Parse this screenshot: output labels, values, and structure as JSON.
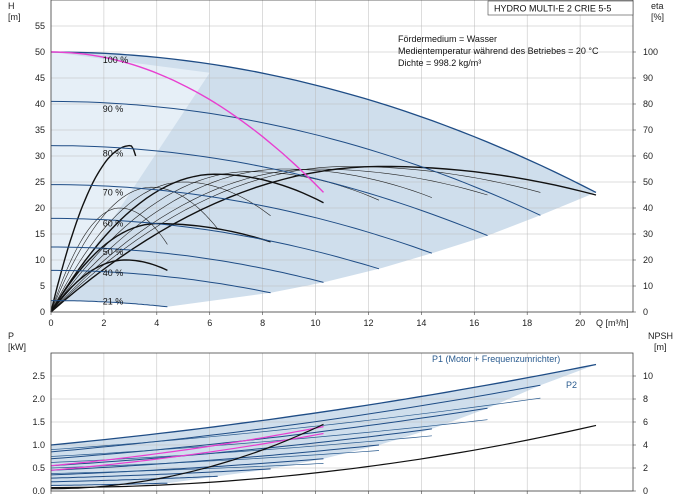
{
  "chart_data": [
    {
      "type": "line",
      "title": "HYDRO MULTI-E 2 CRIE 5-5",
      "ylabel_left": "H",
      "ylabel_left_unit": "[m]",
      "ylabel_right": "eta",
      "ylabel_right_unit": "[%]",
      "xlabel": "Q [m³/h]",
      "xlim": [
        0,
        22
      ],
      "ylim": [
        0,
        60
      ],
      "y2lim": [
        0,
        120
      ],
      "xticks": [
        0,
        2,
        4,
        6,
        8,
        10,
        12,
        14,
        16,
        18,
        20
      ],
      "yticks": [
        0,
        5,
        10,
        15,
        20,
        25,
        30,
        35,
        40,
        45,
        50,
        55
      ],
      "y2ticks": [
        0,
        10,
        20,
        30,
        40,
        50,
        60,
        70,
        80,
        90,
        100
      ],
      "grid": true,
      "annotations": [
        "Fördermedium = Wasser",
        "Medientemperatur während des Betriebes = 20 °C",
        "Dichte = 998.2 kg/m³"
      ],
      "speed_labels": [
        {
          "label": "100 %",
          "q": 1.2,
          "h": 48.5
        },
        {
          "label": "90 %",
          "q": 1.2,
          "h": 39.0
        },
        {
          "label": "80 %",
          "q": 1.2,
          "h": 30.5
        },
        {
          "label": "70 %",
          "q": 1.2,
          "h": 23.0
        },
        {
          "label": "60 %",
          "q": 1.2,
          "h": 17.0
        },
        {
          "label": "50 %",
          "q": 1.2,
          "h": 11.5
        },
        {
          "label": "40 %",
          "q": 1.2,
          "h": 7.5
        },
        {
          "label": "21 %",
          "q": 1.2,
          "h": 2.0
        }
      ],
      "head_curves": [
        {
          "h0": 50.0,
          "qmax": 20.6,
          "hend": 23.0
        },
        {
          "h0": 40.5,
          "qmax": 18.5,
          "hend": 18.6
        },
        {
          "h0": 32.0,
          "qmax": 16.5,
          "hend": 14.7
        },
        {
          "h0": 24.5,
          "qmax": 14.4,
          "hend": 11.3
        },
        {
          "h0": 18.0,
          "qmax": 12.4,
          "hend": 8.3
        },
        {
          "h0": 12.5,
          "qmax": 10.3,
          "hend": 5.7
        },
        {
          "h0": 8.0,
          "qmax": 8.3,
          "hend": 3.7
        },
        {
          "h0": 2.2,
          "qmax": 4.4,
          "hend": 1.0
        }
      ],
      "highlight_curve": {
        "h0": 50.0,
        "qmax": 10.3,
        "hend": 23.0,
        "color": "#e83fd0"
      },
      "efficiency_curves": [
        {
          "qmax": 20.6,
          "peak": 56,
          "qpeak": 12.5,
          "end": 45
        },
        {
          "qmax": 18.5,
          "peak": 56,
          "qpeak": 11.2,
          "end": 46
        },
        {
          "qmax": 16.5,
          "peak": 55,
          "qpeak": 10.0,
          "end": 45
        },
        {
          "qmax": 14.4,
          "peak": 55,
          "qpeak": 8.8,
          "end": 44
        },
        {
          "qmax": 12.4,
          "peak": 54,
          "qpeak": 7.5,
          "end": 43
        },
        {
          "qmax": 10.3,
          "peak": 53,
          "qpeak": 6.2,
          "end": 42
        },
        {
          "qmax": 8.3,
          "peak": 50,
          "qpeak": 5.0,
          "end": 37
        },
        {
          "qmax": 6.3,
          "peak": 48,
          "qpeak": 3.8,
          "end": 32
        },
        {
          "qmax": 4.4,
          "peak": 40,
          "qpeak": 2.6,
          "end": 26
        }
      ],
      "efficiency_bold": [
        {
          "qmax": 20.6,
          "peak": 56,
          "qpeak": 12.5,
          "end": 45
        },
        {
          "qmax": 10.3,
          "peak": 53,
          "qpeak": 6.2,
          "end": 42
        },
        {
          "qmax": 8.3,
          "peak": 34,
          "qpeak": 4.0,
          "end": 27
        },
        {
          "qmax": 4.4,
          "peak": 20,
          "qpeak": 2.8,
          "end": 16
        },
        {
          "qmax": 3.2,
          "peak": 64,
          "qpeak": 3.0,
          "end": 60
        }
      ]
    },
    {
      "type": "line",
      "ylabel_left": "P",
      "ylabel_left_unit": "[kW]",
      "ylabel_right": "NPSH",
      "ylabel_right_unit": "[m]",
      "xlim": [
        0,
        22
      ],
      "ylim": [
        0,
        3.0
      ],
      "y2lim": [
        0,
        12
      ],
      "yticks": [
        0,
        0.5,
        1.0,
        1.5,
        2.0,
        2.5
      ],
      "ytick_labels": [
        "0.0",
        "0.5",
        "1.0",
        "1.5",
        "2.0",
        "2.5"
      ],
      "y2ticks": [
        0,
        2,
        4,
        6,
        8,
        10
      ],
      "series_labels": [
        "P1 (Motor + Frequenzumrichter)",
        "P2"
      ],
      "power_curves": [
        {
          "p0": 1.0,
          "qmax": 20.6,
          "pend": 2.75
        },
        {
          "p0": 0.85,
          "qmax": 18.5,
          "pend": 2.3
        },
        {
          "p0": 0.7,
          "qmax": 16.5,
          "pend": 1.8
        },
        {
          "p0": 0.55,
          "qmax": 14.4,
          "pend": 1.35
        },
        {
          "p0": 0.45,
          "qmax": 12.4,
          "pend": 1.0
        },
        {
          "p0": 0.35,
          "qmax": 10.3,
          "pend": 0.7
        },
        {
          "p0": 0.28,
          "qmax": 8.3,
          "pend": 0.48
        },
        {
          "p0": 0.2,
          "qmax": 6.3,
          "pend": 0.32
        },
        {
          "p0": 0.12,
          "qmax": 4.4,
          "pend": 0.17
        }
      ],
      "power_curves_p2": [
        {
          "p0": 0.9,
          "qmax": 18.5,
          "pend": 2.02
        },
        {
          "p0": 0.75,
          "qmax": 16.5,
          "pend": 1.55
        },
        {
          "p0": 0.62,
          "qmax": 14.4,
          "pend": 1.2
        },
        {
          "p0": 0.5,
          "qmax": 12.4,
          "pend": 0.88
        },
        {
          "p0": 0.38,
          "qmax": 10.3,
          "pend": 0.6
        }
      ],
      "highlight_power": [
        {
          "p0": 0.55,
          "qmax": 10.3,
          "pend": 1.4,
          "color": "#e83fd0"
        },
        {
          "p0": 0.45,
          "qmax": 10.3,
          "pend": 1.25,
          "color": "#e83fd0"
        }
      ],
      "npsh_curves": [
        {
          "qmax": 20.6,
          "n0": 0.3,
          "nend": 5.7
        },
        {
          "qmax": 10.3,
          "n0": 0.2,
          "nend": 5.8
        }
      ]
    }
  ]
}
